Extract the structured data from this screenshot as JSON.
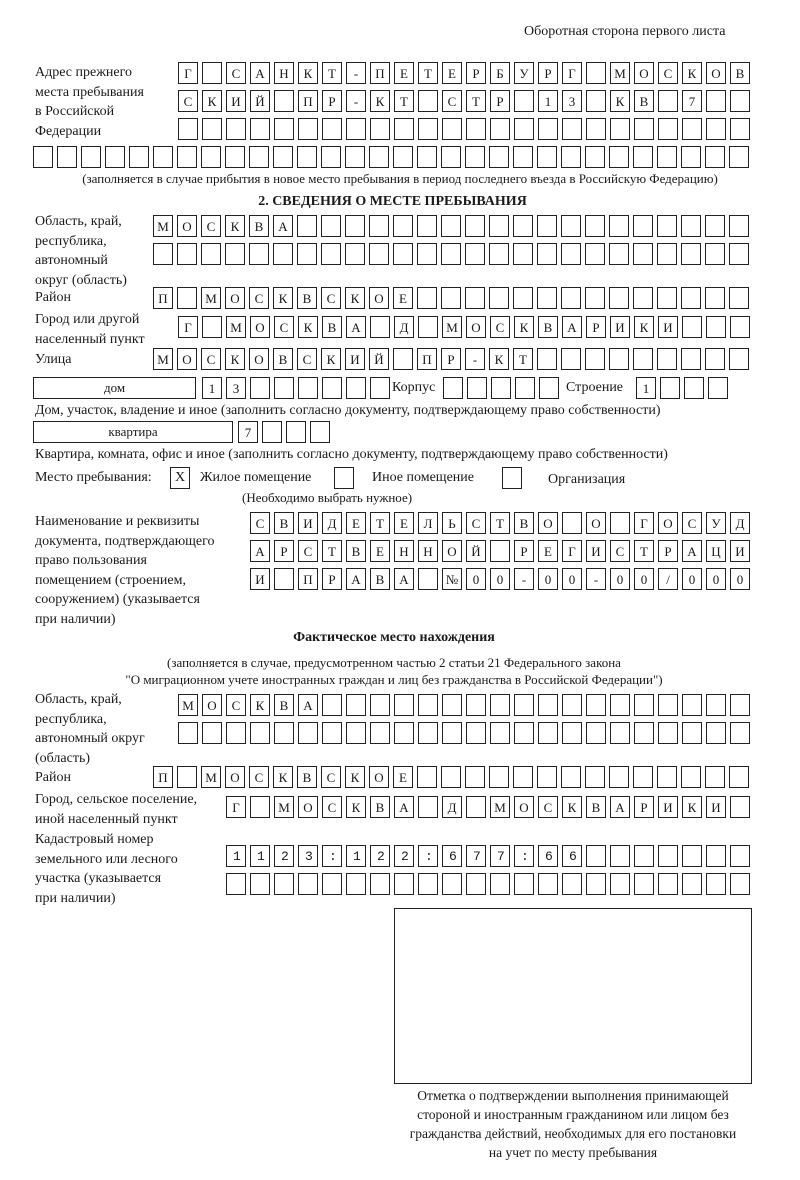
{
  "header": "Оборотная сторона первого листа",
  "prev_address": {
    "label": "Адрес прежнего\nместа пребывания\nв Российской\nФедерации",
    "rows": [
      "Г САНКТ-ПЕТЕРБУРГ МОСКОВ",
      "СКИЙ ПР-КТ СТР 13 КВ 7",
      "",
      ""
    ],
    "note": "(заполняется в случае прибытия в новое место пребывания в период последнего въезда в Российскую Федерацию)"
  },
  "section2": {
    "title": "2. СВЕДЕНИЯ О МЕСТЕ ПРЕБЫВАНИЯ",
    "region_label": "Область, край,\nреспублика,\nавтономный\nокруг (область)",
    "region_rows": [
      "МОСКВА",
      ""
    ],
    "district_label": "Район",
    "district_row": "П МОСКВСКОЕ",
    "city_label": "Город или другой\nнаселенный пункт",
    "city_row": "Г МОСКВА Д МОСКВАРИКИ",
    "street_label": "Улица",
    "street_row": "МОСКОВСКИЙ ПР-КТ",
    "house_type": "дом",
    "house_number": "13",
    "korpus_label": "Корпус",
    "korpus_value": "",
    "building_label": "Строение",
    "building_value": "1",
    "house_caption": "Дом, участок, владение и иное (заполнить согласно документу, подтверждающему право собственности)",
    "flat_type": "квартира",
    "flat_number": "7",
    "flat_caption": "Квартира, комната, офис и иное (заполнить согласно документу, подтверждающему право собственности)",
    "stay_place_label": "Место пребывания:",
    "stay_options": [
      {
        "label": "Жилое помещение",
        "mark": "X",
        "checked": true
      },
      {
        "label": "Иное помещение",
        "mark": "",
        "checked": false
      },
      {
        "label": "Организация",
        "mark": "",
        "checked": false
      }
    ],
    "stay_hint": "(Необходимо выбрать нужное)",
    "doc_label": "Наименование и реквизиты\nдокумента, подтверждающего\nправо пользования\nпомещением (строением,\nсооружением) (указывается\nпри наличии)",
    "doc_rows": [
      "СВИДЕТЕЛЬСТВО О ГОСУД",
      "АРСТВЕННОЙ РЕГИСТРАЦИ",
      "И ПРАВА №00-00-00/000"
    ]
  },
  "actual": {
    "title": "Фактическое место нахождения",
    "note1": "(заполняется в случае, предусмотренном частью 2 статьи 21 Федерального закона",
    "note2": "\"О миграционном учете иностранных граждан и лиц без гражданства в Российской Федерации\")",
    "region_label": "Область, край,\nреспублика,\nавтономный округ\n(область)",
    "region_rows": [
      "МОСКВА",
      ""
    ],
    "district_label": "Район",
    "district_row": "П МОСКВСКОЕ",
    "city_label": "Город, сельское поселение,\nиной населенный пункт",
    "city_row": "Г МОСКВА Д МОСКВАРИКИ",
    "cadastre_label": "Кадастровый номер\nземельного или лесного\nучастка (указывается\nпри наличии)",
    "cadastre_rows": [
      "1123:122:677:66",
      ""
    ]
  },
  "stamp_caption": "Отметка о подтверждении выполнения принимающей\nстороной и иностранным гражданином или лицом без\nгражданства действий, необходимых для его постановки\nна учет по месту пребывания"
}
